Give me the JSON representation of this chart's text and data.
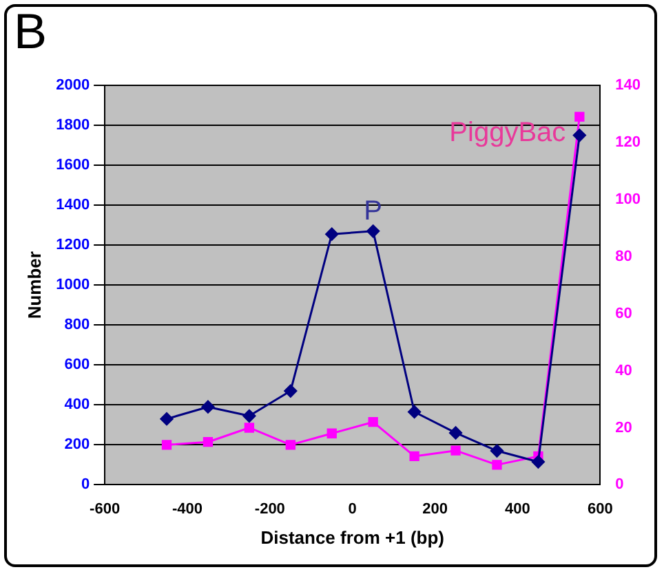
{
  "chart_data": {
    "type": "line",
    "title": "B",
    "xlabel": "Distance from +1 (bp)",
    "ylabel": "Number",
    "x": [
      -450,
      -350,
      -250,
      -150,
      -50,
      50,
      150,
      250,
      350,
      450,
      550
    ],
    "series": [
      {
        "name": "P",
        "color": "#000080",
        "marker": "diamond",
        "values": [
          330,
          390,
          345,
          470,
          1255,
          1270,
          365,
          260,
          170,
          115,
          1750
        ]
      },
      {
        "name": "PiggyBac",
        "color": "#ff00ff",
        "marker": "square",
        "axis": "y2",
        "values": [
          14,
          15,
          20,
          14,
          18,
          22,
          10,
          12,
          7,
          10,
          129
        ]
      }
    ],
    "xlim": [
      -600,
      600
    ],
    "xticks": [
      -600,
      -400,
      -200,
      0,
      200,
      400,
      600
    ],
    "ylim": [
      0,
      2000
    ],
    "yticks": [
      0,
      200,
      400,
      600,
      800,
      1000,
      1200,
      1400,
      1600,
      1800,
      2000
    ],
    "y2lim": [
      0,
      140
    ],
    "y2ticks": [
      0,
      20,
      40,
      60,
      80,
      100,
      120,
      140
    ],
    "grid": "y",
    "legend": false,
    "line_style": "solid"
  }
}
